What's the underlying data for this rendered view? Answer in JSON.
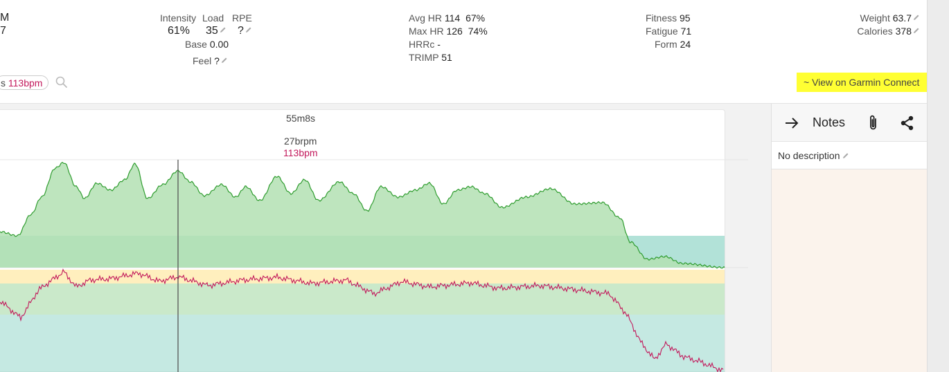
{
  "summary": {
    "cut_left_top": "M",
    "cut_left_bottom": "7",
    "intensity_label": "Intensity",
    "intensity_value": "61%",
    "load_label": "Load",
    "load_value": "35",
    "rpe_label": "RPE",
    "rpe_value": "?",
    "base_label": "Base",
    "base_value": "0.00",
    "feel_label": "Feel",
    "feel_value": "?",
    "avg_hr_label": "Avg HR",
    "avg_hr_value": "114",
    "avg_hr_pct": "67%",
    "max_hr_label": "Max HR",
    "max_hr_value": "126",
    "max_hr_pct": "74%",
    "hrrc_label": "HRRc",
    "hrrc_value": "-",
    "trimp_label": "TRIMP",
    "trimp_value": "51",
    "fitness_label": "Fitness",
    "fitness_value": "95",
    "fatigue_label": "Fatigue",
    "fatigue_value": "71",
    "form_label": "Form",
    "form_value": "24",
    "weight_label": "Weight",
    "weight_value": "63.7",
    "calories_label": "Calories",
    "calories_value": "378"
  },
  "filter": {
    "chip_prefix": "s",
    "chip_hr": "113bpm"
  },
  "garmin_link": "~ View on Garmin Connect",
  "cursor": {
    "time": "55m8s",
    "resp": "27brpm",
    "hr": "113bpm"
  },
  "notes": {
    "title": "Notes",
    "description": "No description"
  },
  "colors": {
    "accent_hr": "#c2185b",
    "zone_green": "#b3e0b3",
    "zone_teal": "#b2e2d8",
    "zone_yellow": "#ffe9a8",
    "line_green": "#2e9c2e",
    "highlight": "#ffff33"
  },
  "icons": [
    "pencil-icon",
    "search-icon",
    "arrow-right-icon",
    "paperclip-icon",
    "share-icon"
  ]
}
